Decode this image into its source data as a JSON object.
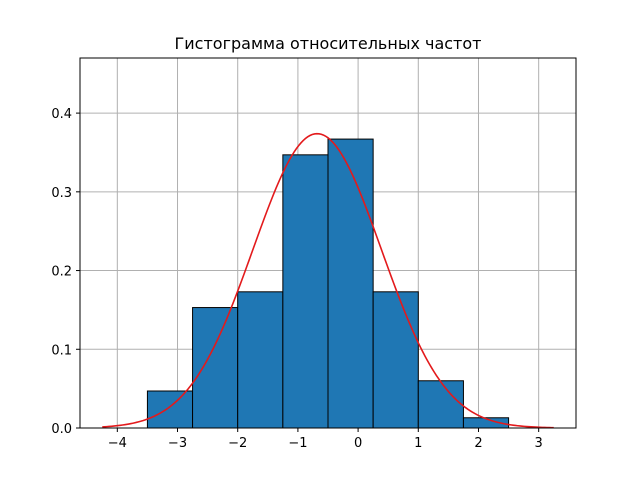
{
  "chart_data": {
    "type": "bar",
    "title": "Гистограмма относительных частот",
    "xlabel": "",
    "ylabel": "",
    "xlim": [
      -4.62,
      3.62
    ],
    "ylim": [
      0,
      0.47
    ],
    "x_ticks": [
      -4,
      -3,
      -2,
      -1,
      0,
      1,
      2,
      3
    ],
    "x_tick_labels": [
      "−4",
      "−3",
      "−2",
      "−1",
      "0",
      "1",
      "2",
      "3"
    ],
    "y_ticks": [
      0.0,
      0.1,
      0.2,
      0.3,
      0.4
    ],
    "y_tick_labels": [
      "0.0",
      "0.1",
      "0.2",
      "0.3",
      "0.4"
    ],
    "grid": true,
    "bins": [
      {
        "left": -3.5,
        "right": -2.75,
        "value": 0.047
      },
      {
        "left": -2.75,
        "right": -2.0,
        "value": 0.153
      },
      {
        "left": -2.0,
        "right": -1.25,
        "value": 0.173
      },
      {
        "left": -1.25,
        "right": -0.5,
        "value": 0.347
      },
      {
        "left": -0.5,
        "right": 0.25,
        "value": 0.367
      },
      {
        "left": 0.25,
        "right": 1.0,
        "value": 0.173
      },
      {
        "left": 1.0,
        "right": 1.75,
        "value": 0.06
      },
      {
        "left": 1.75,
        "right": 2.5,
        "value": 0.013
      }
    ],
    "curve": {
      "type": "normal_pdf",
      "mean": -0.68,
      "sd": 1.067,
      "x_range": [
        -4.25,
        3.25
      ]
    },
    "colors": {
      "bar_fill": "#1f77b4",
      "bar_edge": "#000000",
      "curve": "#e31a1c",
      "grid": "#b0b0b0"
    }
  }
}
